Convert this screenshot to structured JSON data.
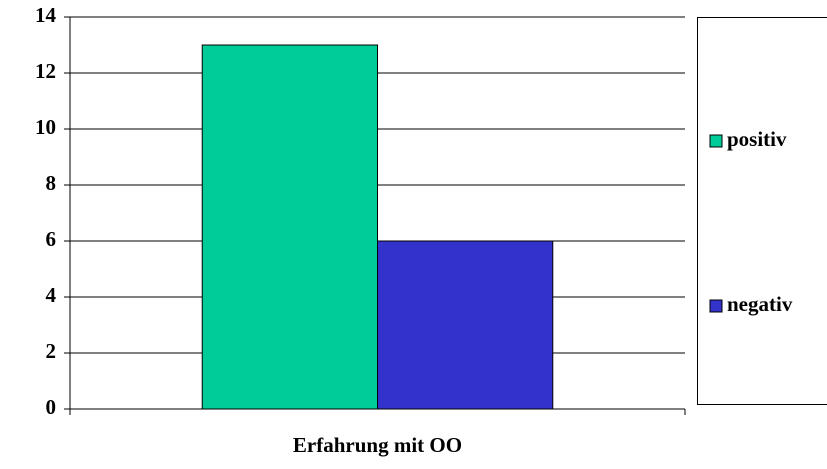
{
  "chart_data": {
    "type": "bar",
    "categories": [
      "Erfahrung mit OO"
    ],
    "series": [
      {
        "name": "positiv",
        "color": "#00cc99",
        "values": [
          13
        ]
      },
      {
        "name": "negativ",
        "color": "#3333cc",
        "values": [
          6
        ]
      }
    ],
    "ylim": [
      0,
      14
    ],
    "yticks": [
      0,
      2,
      4,
      6,
      8,
      10,
      12,
      14
    ],
    "grid": true,
    "legend": "right"
  }
}
